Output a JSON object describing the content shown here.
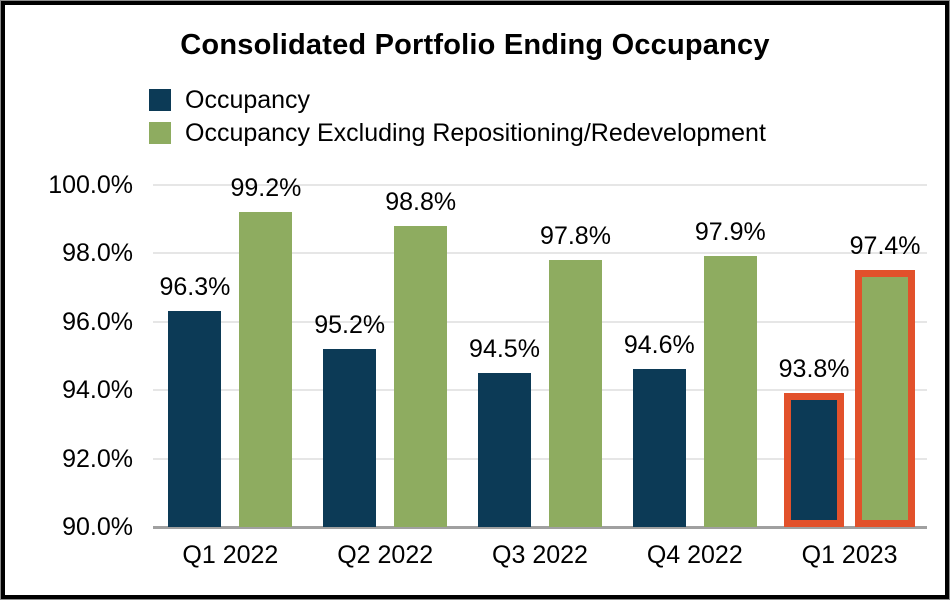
{
  "chart_data": {
    "type": "bar",
    "title": "Consolidated Portfolio Ending Occupancy",
    "categories": [
      "Q1 2022",
      "Q2 2022",
      "Q3 2022",
      "Q4 2022",
      "Q1 2023"
    ],
    "series": [
      {
        "name": "Occupancy",
        "color": "#0c3a56",
        "values": [
          96.3,
          95.2,
          94.5,
          94.6,
          93.8
        ],
        "labels": [
          "96.3%",
          "95.2%",
          "94.5%",
          "94.6%",
          "93.8%"
        ]
      },
      {
        "name": "Occupancy Excluding Repositioning/Redevelopment",
        "color": "#8eac60",
        "values": [
          99.2,
          98.8,
          97.8,
          97.9,
          97.4
        ],
        "labels": [
          "99.2%",
          "98.8%",
          "97.8%",
          "97.9%",
          "97.4%"
        ]
      }
    ],
    "highlight": {
      "category": "Q1 2023",
      "border_color": "#e2512b"
    },
    "y_axis": {
      "min": 90,
      "max": 100,
      "ticks": [
        {
          "value": 90,
          "label": "90.0%"
        },
        {
          "value": 92,
          "label": "92.0%"
        },
        {
          "value": 94,
          "label": "94.0%"
        },
        {
          "value": 96,
          "label": "96.0%"
        },
        {
          "value": 98,
          "label": "98.0%"
        },
        {
          "value": 100,
          "label": "100.0%"
        }
      ]
    },
    "grid": true,
    "legend_position": "top-left"
  },
  "colors": {
    "gridline": "#e6e6e6",
    "axis_line": "#a0a0a0",
    "frame_border": "#000000",
    "background": "#ffffff",
    "text": "#000000"
  }
}
